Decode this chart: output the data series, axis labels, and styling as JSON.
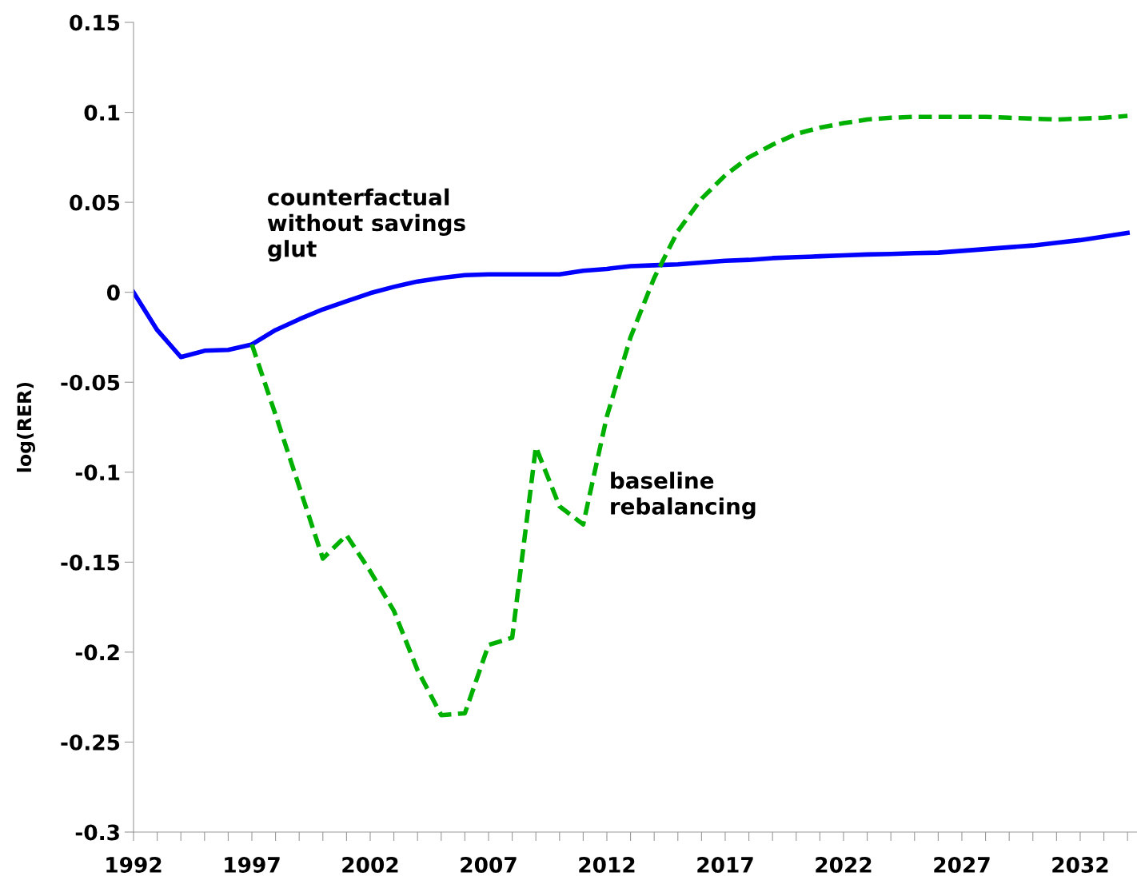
{
  "chart_data": {
    "type": "line",
    "ylabel": "log(RER)",
    "x": [
      1992,
      1993,
      1994,
      1995,
      1996,
      1997,
      1998,
      1999,
      2000,
      2001,
      2002,
      2003,
      2004,
      2005,
      2006,
      2007,
      2008,
      2009,
      2010,
      2011,
      2012,
      2013,
      2014,
      2015,
      2016,
      2017,
      2018,
      2019,
      2020,
      2021,
      2022,
      2023,
      2024,
      2025,
      2026,
      2027,
      2028,
      2029,
      2030,
      2031,
      2032,
      2033,
      2034
    ],
    "series": [
      {
        "name": "counterfactual\nwithout savings\nglut",
        "color": "#0000ff",
        "line_style": "solid",
        "values": [
          0,
          -0.021,
          -0.036,
          -0.0325,
          -0.032,
          -0.029,
          -0.021,
          -0.015,
          -0.0095,
          -0.005,
          -0.0005,
          0.003,
          0.006,
          0.008,
          0.0095,
          0.01,
          0.01,
          0.01,
          0.01,
          0.012,
          0.013,
          0.0145,
          0.015,
          0.0155,
          0.0165,
          0.0175,
          0.018,
          0.019,
          0.0195,
          0.02,
          0.0205,
          0.021,
          0.0213,
          0.0217,
          0.022,
          0.023,
          0.024,
          0.025,
          0.026,
          0.0275,
          0.029,
          0.031,
          0.033
        ]
      },
      {
        "name": "baseline\nrebalancing",
        "color": "#00b000",
        "line_style": "dashed",
        "values": [
          null,
          null,
          null,
          null,
          null,
          -0.029,
          -0.068,
          -0.108,
          -0.148,
          -0.135,
          -0.155,
          -0.177,
          -0.21,
          -0.235,
          -0.234,
          -0.196,
          -0.192,
          -0.086,
          -0.119,
          -0.129,
          -0.069,
          -0.025,
          0.008,
          0.034,
          0.052,
          0.065,
          0.075,
          0.082,
          0.088,
          0.0915,
          0.094,
          0.096,
          0.097,
          0.0975,
          0.0975,
          0.0975,
          0.0975,
          0.097,
          0.0965,
          0.096,
          0.0965,
          0.097,
          0.098
        ]
      }
    ],
    "xlim": [
      1992,
      2034.4
    ],
    "xticks": [
      1992,
      {
        "value": 1993,
        "label": null
      },
      {
        "value": 1994,
        "label": null
      },
      {
        "value": 1995,
        "label": null
      },
      {
        "value": 1996,
        "label": null
      },
      1997,
      {
        "value": 1998,
        "label": null
      },
      {
        "value": 1999,
        "label": null
      },
      {
        "value": 2000,
        "label": null
      },
      {
        "value": 2001,
        "label": null
      },
      2002,
      {
        "value": 2003,
        "label": null
      },
      {
        "value": 2004,
        "label": null
      },
      {
        "value": 2005,
        "label": null
      },
      {
        "value": 2006,
        "label": null
      },
      2007,
      {
        "value": 2008,
        "label": null
      },
      {
        "value": 2009,
        "label": null
      },
      {
        "value": 2010,
        "label": null
      },
      {
        "value": 2011,
        "label": null
      },
      2012,
      {
        "value": 2013,
        "label": null
      },
      {
        "value": 2014,
        "label": null
      },
      {
        "value": 2015,
        "label": null
      },
      {
        "value": 2016,
        "label": null
      },
      2017,
      {
        "value": 2018,
        "label": null
      },
      {
        "value": 2019,
        "label": null
      },
      {
        "value": 2020,
        "label": null
      },
      {
        "value": 2021,
        "label": null
      },
      2022,
      {
        "value": 2023,
        "label": null
      },
      {
        "value": 2024,
        "label": null
      },
      {
        "value": 2025,
        "label": null
      },
      {
        "value": 2026,
        "label": null
      },
      2027,
      {
        "value": 2028,
        "label": null
      },
      {
        "value": 2029,
        "label": null
      },
      {
        "value": 2030,
        "label": null
      },
      {
        "value": 2031,
        "label": null
      },
      2032,
      {
        "value": 2033,
        "label": null
      },
      {
        "value": 2034,
        "label": null
      }
    ],
    "ylim": [
      -0.3,
      0.15
    ],
    "yticks": [
      -0.3,
      -0.25,
      -0.2,
      -0.15,
      -0.1,
      -0.05,
      0,
      0.05,
      0.1,
      0.15
    ],
    "grid": false,
    "legend": false,
    "marker": "none"
  }
}
